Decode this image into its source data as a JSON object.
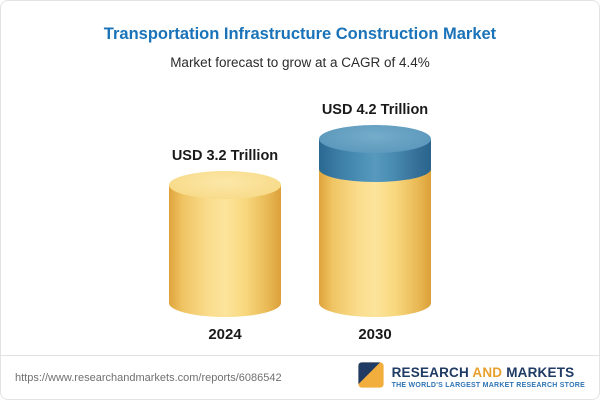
{
  "header": {
    "title": "Transportation Infrastructure Construction Market",
    "subtitle": "Market forecast to grow at a CAGR of 4.4%"
  },
  "chart_data": {
    "type": "bar",
    "title": "Transportation Infrastructure Construction Market",
    "subtitle": "Market forecast to grow at a CAGR of 4.4%",
    "categories": [
      "2024",
      "2030"
    ],
    "values": [
      3.2,
      4.2
    ],
    "value_labels": [
      "USD 3.2 Trillion",
      "USD 4.2 Trillion"
    ],
    "unit": "USD Trillion",
    "cagr": "4.4%",
    "ylim": [
      0,
      4.2
    ],
    "legend": "none",
    "grid": "off",
    "colors": {
      "base_segment": "#F7D67A",
      "growth_segment": "#3E7FA6",
      "title": "#1A73B8"
    }
  },
  "footer": {
    "url": "https://www.researchandmarkets.com/reports/6086542",
    "logo": {
      "research": "RESEARCH ",
      "and": "AND",
      "markets": " MARKETS",
      "tagline": "THE WORLD'S LARGEST MARKET RESEARCH STORE"
    }
  }
}
